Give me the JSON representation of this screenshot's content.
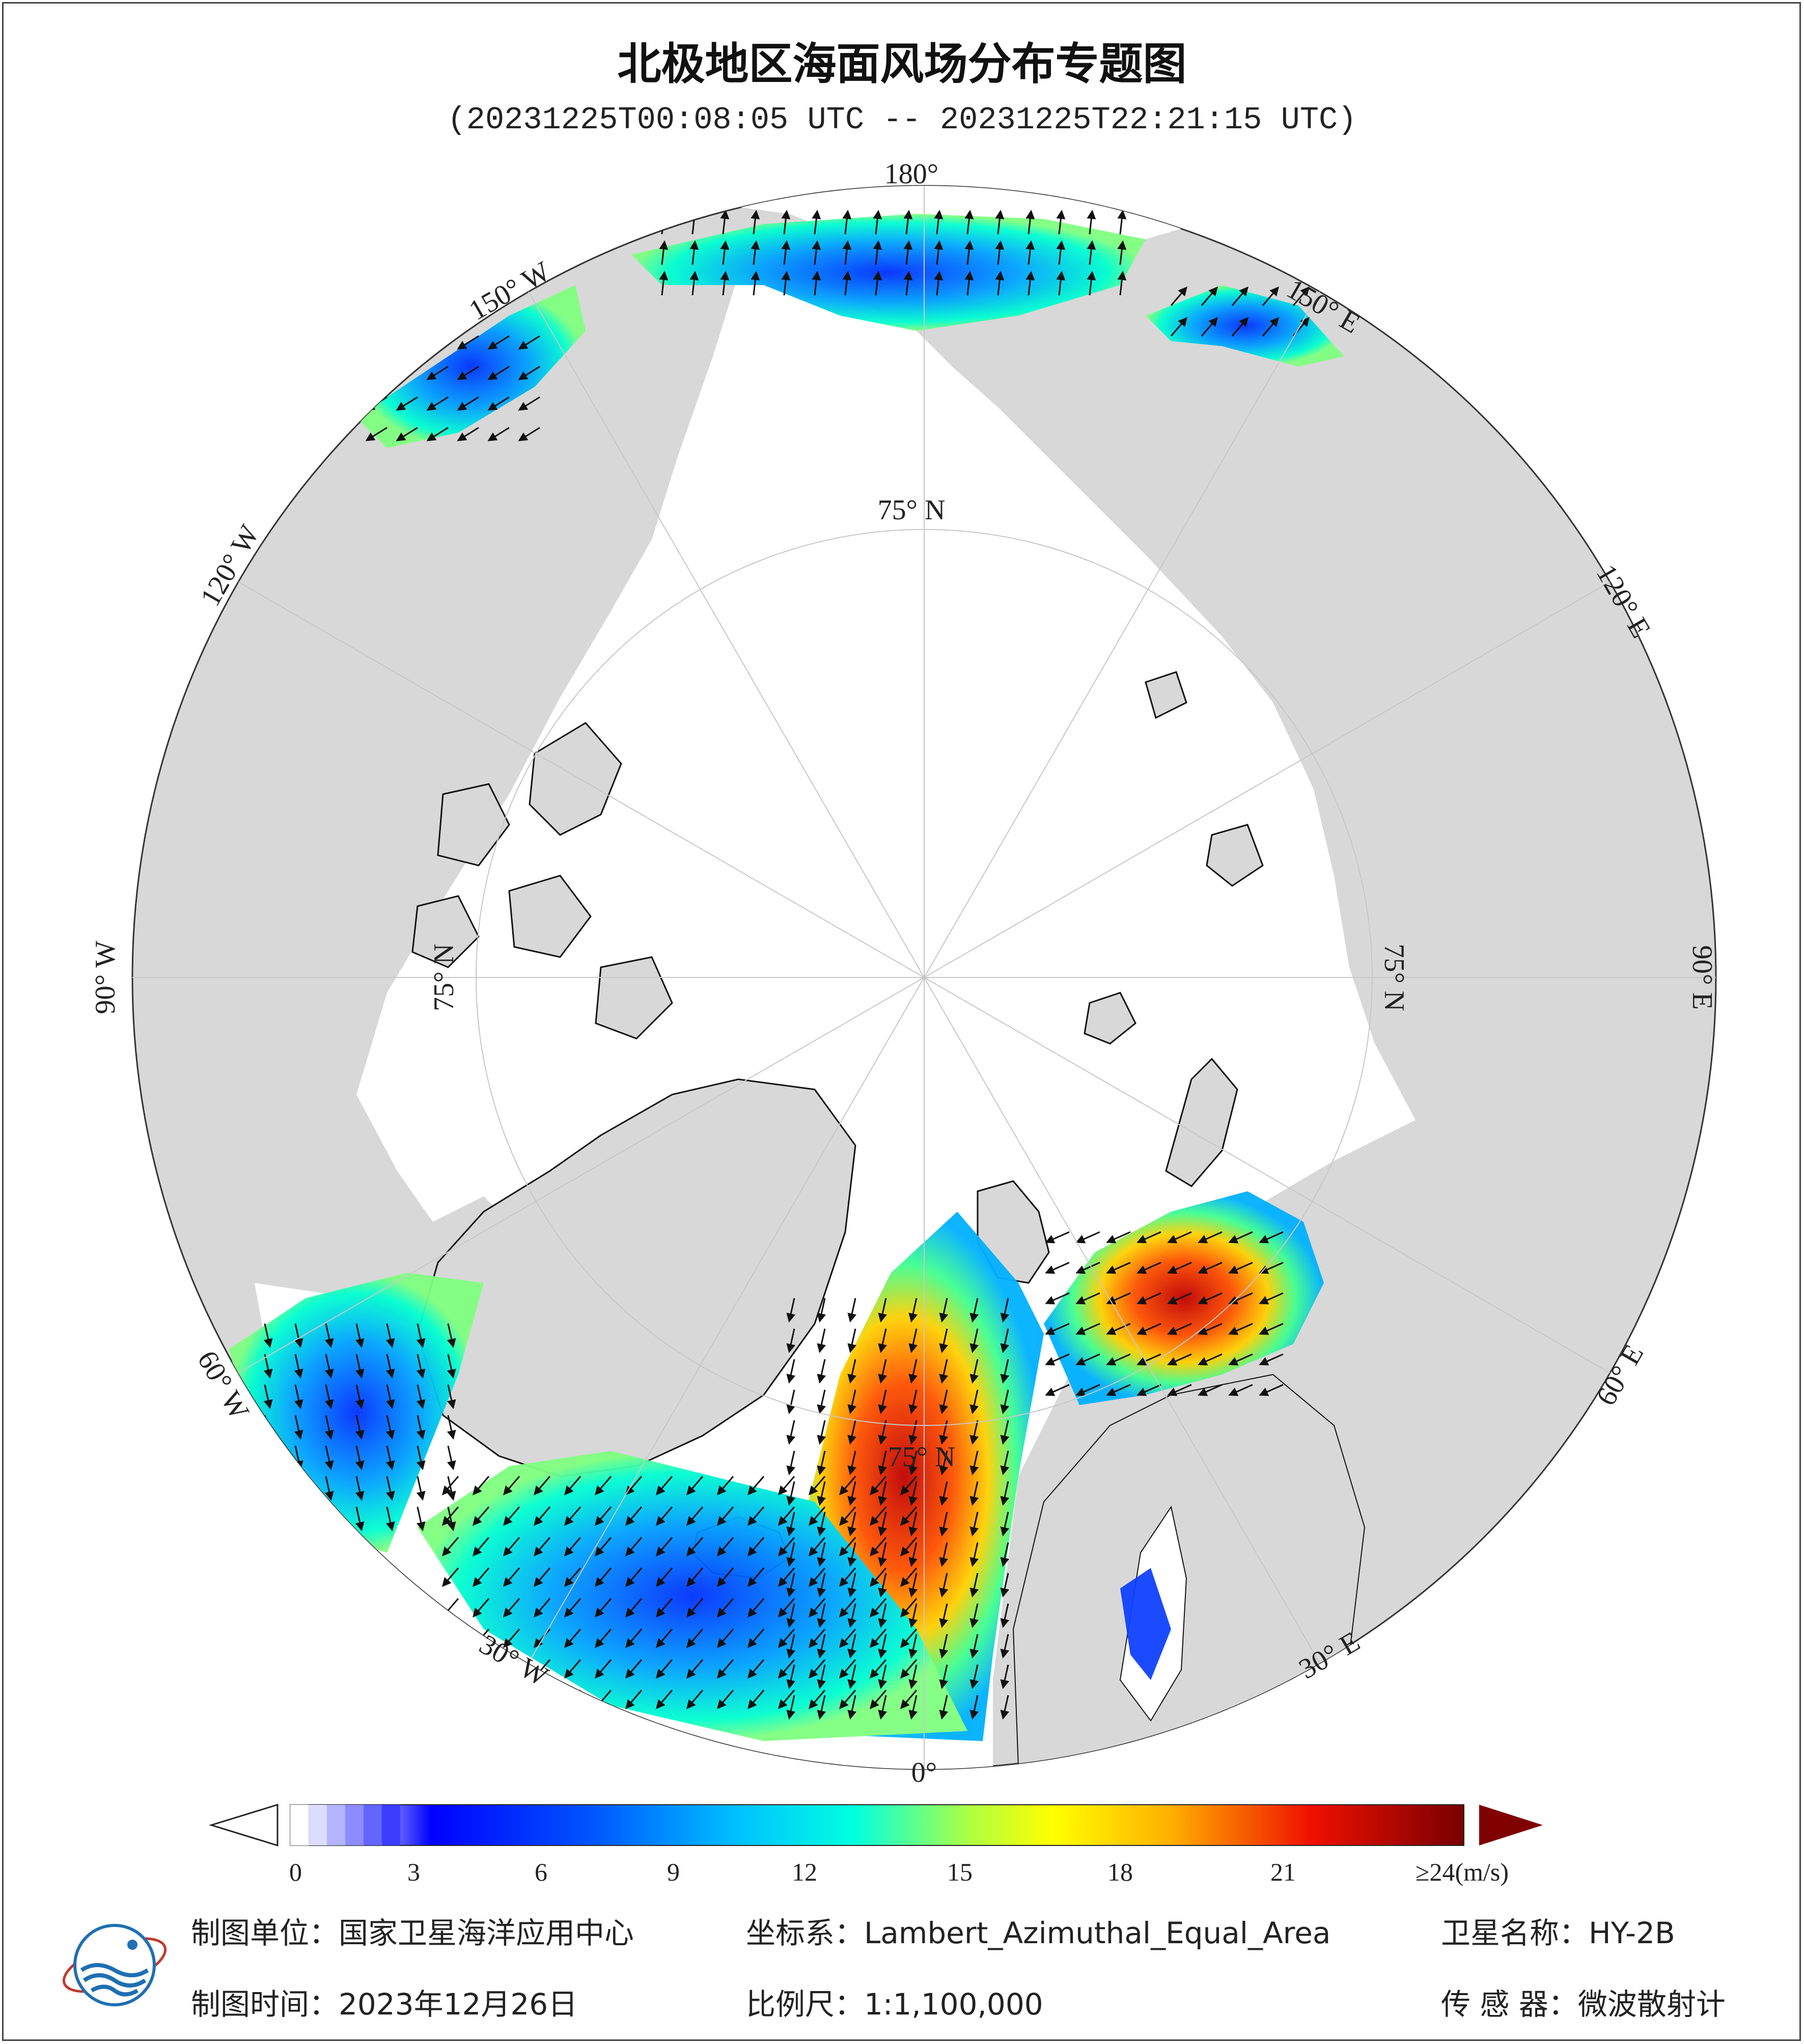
{
  "title": "北极地区海面风场分布专题图",
  "subtitle": "(20231225T00:08:05 UTC -- 20231225T22:21:15 UTC)",
  "map": {
    "projection_center": "North Pole",
    "ocean_color": "#ffffff",
    "land_color": "#d8d8d8",
    "outer_ring_color": "#d8d8d8",
    "longitude_labels": [
      {
        "name": "lon-180",
        "text": "180°"
      },
      {
        "name": "lon-150w",
        "text": "150° W"
      },
      {
        "name": "lon-120w",
        "text": "120° W"
      },
      {
        "name": "lon-90w",
        "text": "90° W"
      },
      {
        "name": "lon-60w",
        "text": "60° W"
      },
      {
        "name": "lon-30w",
        "text": "30° W"
      },
      {
        "name": "lon-0",
        "text": "0°"
      },
      {
        "name": "lon-30e",
        "text": "30° E"
      },
      {
        "name": "lon-60e",
        "text": "60° E"
      },
      {
        "name": "lon-90e",
        "text": "90° E"
      },
      {
        "name": "lon-120e",
        "text": "120° E"
      },
      {
        "name": "lon-150e",
        "text": "150° E"
      }
    ],
    "latitude_labels": [
      {
        "name": "lat-75-top",
        "text": "75° N"
      },
      {
        "name": "lat-75-left",
        "text": "75° N"
      },
      {
        "name": "lat-75-right",
        "text": "75° N"
      },
      {
        "name": "lat-75-bottom",
        "text": "75° N"
      }
    ]
  },
  "colorbar": {
    "ticks": [
      "0",
      "3",
      "6",
      "9",
      "12",
      "15",
      "18",
      "21",
      "≥24(m/s)"
    ],
    "min": 0,
    "max": 24,
    "unit": "m/s",
    "colors": [
      "#ffffff",
      "#c8c8ff",
      "#7878ff",
      "#0000ff",
      "#0050ff",
      "#00a0ff",
      "#00ffff",
      "#80ff80",
      "#ffff00",
      "#ffb000",
      "#ff5000",
      "#e00000",
      "#800000"
    ]
  },
  "footer": {
    "unit_label": "制图单位：国家卫星海洋应用中心",
    "coord_label": "坐标系：Lambert_Azimuthal_Equal_Area",
    "satellite_label": "卫星名称：HY-2B",
    "date_label": "制图时间：2023年12月26日",
    "scale_label": "比例尺：1:1,100,000",
    "sensor_label": "传 感 器：微波散射计"
  },
  "logo": {
    "name": "nsoas-logo"
  }
}
